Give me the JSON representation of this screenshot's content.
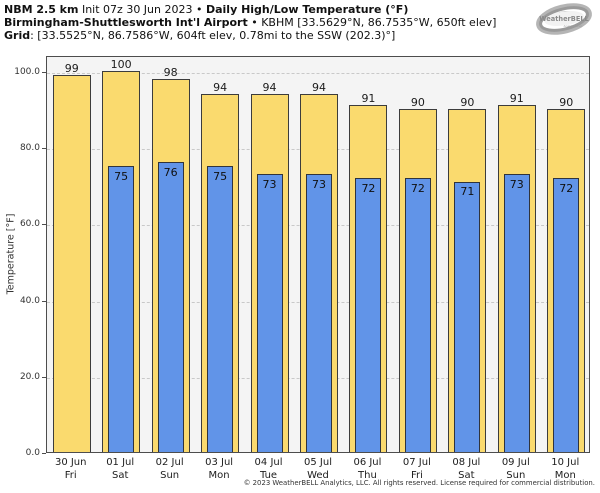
{
  "header": {
    "line1_bold1": "NBM 2.5 km",
    "line1_reg1": " Init 07z 30 Jun 2023 • ",
    "line1_bold2": "Daily High/Low Temperature (°F)",
    "line2_bold": "Birmingham-Shuttlesworth Int'l Airport",
    "line2_reg": " • KBHM [33.5629°N, 86.7535°W, 650ft elev]",
    "line3_bold": "Grid",
    "line3_reg": ": [33.5525°N, 86.7586°W, 604ft elev, 0.78mi to the SSW (202.3)°]"
  },
  "logo": {
    "text": "WeatherBELL",
    "subtext": "Analytics LLC"
  },
  "chart_data": {
    "type": "bar",
    "title": "NBM 2.5 km Daily High/Low Temperature (°F) — KBHM Birmingham",
    "ylabel": "Temperature [°F]",
    "ylim": [
      0,
      104.2
    ],
    "yticks": [
      0,
      20,
      40,
      60,
      80,
      100
    ],
    "ytick_labels": [
      "0.0",
      "20.0",
      "40.0",
      "60.0",
      "80.0",
      "100.0"
    ],
    "grid": "horizontal-dashed",
    "legend_position": "none",
    "categories": [
      {
        "date": "30 Jun",
        "day": "Fri"
      },
      {
        "date": "01 Jul",
        "day": "Sat"
      },
      {
        "date": "02 Jul",
        "day": "Sun"
      },
      {
        "date": "03 Jul",
        "day": "Mon"
      },
      {
        "date": "04 Jul",
        "day": "Tue"
      },
      {
        "date": "05 Jul",
        "day": "Wed"
      },
      {
        "date": "06 Jul",
        "day": "Thu"
      },
      {
        "date": "07 Jul",
        "day": "Fri"
      },
      {
        "date": "08 Jul",
        "day": "Sat"
      },
      {
        "date": "09 Jul",
        "day": "Sun"
      },
      {
        "date": "10 Jul",
        "day": "Mon"
      }
    ],
    "series": [
      {
        "name": "Daily High",
        "color": "#fada6e",
        "values": [
          99,
          100,
          98,
          94,
          94,
          94,
          91,
          90,
          90,
          91,
          90
        ]
      },
      {
        "name": "Daily Low",
        "color": "#6194e8",
        "values": [
          null,
          75,
          76,
          75,
          73,
          73,
          72,
          72,
          71,
          73,
          72
        ]
      }
    ]
  },
  "colors": {
    "high_bar": "#fada6e",
    "low_bar": "#6194e8",
    "bar_border": "#3c3c3c",
    "plot_background": "#f4f4f4",
    "gridline": "#c9c9c9",
    "axis": "#4d4d4d",
    "logo_gray": "#999999"
  },
  "footer": {
    "copyright": "© 2023 WeatherBELL Analytics, LLC. All rights reserved. License required for commercial distribution."
  }
}
